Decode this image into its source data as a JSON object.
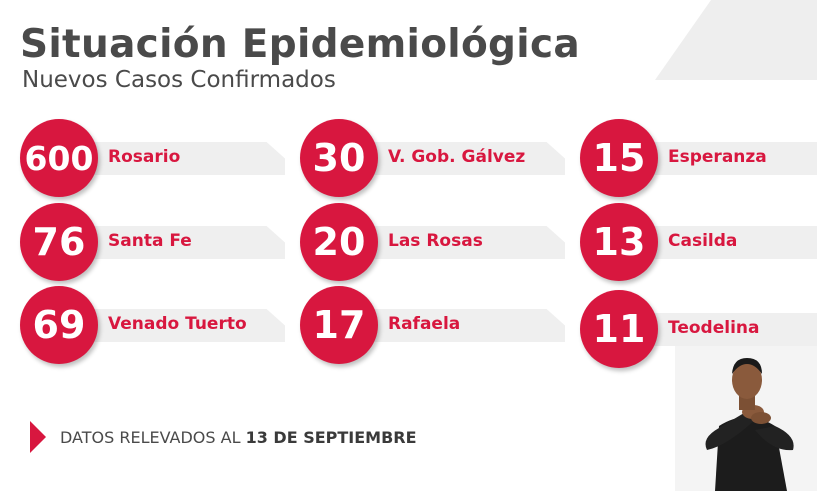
{
  "header": {
    "title": "Situación Epidemiológica",
    "subtitle": "Nuevos Casos Confirmados"
  },
  "cases": [
    {
      "count": "600",
      "city": "Rosario"
    },
    {
      "count": "30",
      "city": "V. Gob. Gálvez"
    },
    {
      "count": "15",
      "city": "Esperanza"
    },
    {
      "count": "76",
      "city": "Santa Fe"
    },
    {
      "count": "20",
      "city": "Las Rosas"
    },
    {
      "count": "13",
      "city": "Casilda"
    },
    {
      "count": "69",
      "city": "Venado Tuerto"
    },
    {
      "count": "17",
      "city": "Rafaela"
    },
    {
      "count": "11",
      "city": "Teodelina"
    }
  ],
  "footer": {
    "label": "DATOS RELEVADOS AL",
    "date": "13 DE SEPTIEMBRE"
  },
  "colors": {
    "accent": "#d8173f",
    "text": "#4a4a4a",
    "band": "#efefef"
  }
}
